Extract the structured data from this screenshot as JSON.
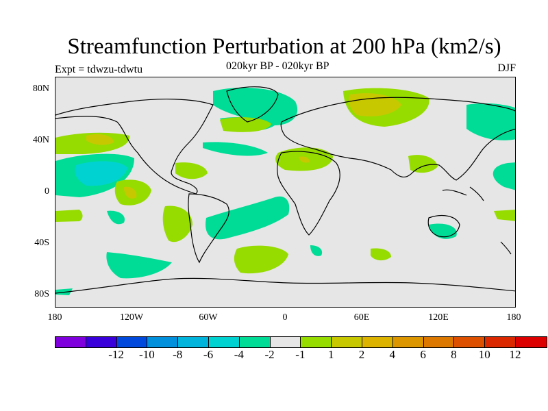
{
  "title": "Streamfunction Perturbation at 200 hPa (km2/s)",
  "subtitle": "020kyr BP - 020kyr BP",
  "experiment": "Expt = tdwzu-tdwtu",
  "season": "DJF",
  "lat_ticks": [
    "80N",
    "40N",
    "0",
    "40S",
    "80S"
  ],
  "lon_ticks": [
    "180",
    "120W",
    "60W",
    "0",
    "60E",
    "120E",
    "180"
  ],
  "colorbar": {
    "colors": [
      "#7f00dc",
      "#3a00dc",
      "#0049dc",
      "#0090dc",
      "#00b4dc",
      "#00d2d2",
      "#00dc96",
      "#e6e6e6",
      "#96dc00",
      "#c8c800",
      "#dcb400",
      "#dc9600",
      "#dc7800",
      "#dc5000",
      "#dc2800",
      "#dc0000"
    ],
    "labels": [
      "-12",
      "-10",
      "-8",
      "-6",
      "-4",
      "-2",
      "-1",
      "1",
      "2",
      "4",
      "6",
      "8",
      "10",
      "12"
    ]
  }
}
